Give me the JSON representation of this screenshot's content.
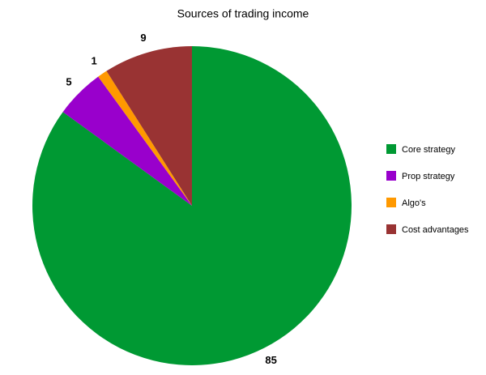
{
  "chart_data": {
    "type": "pie",
    "title": "Sources of trading income",
    "categories": [
      "Core strategy",
      "Prop strategy",
      "Algo's",
      "Cost advantages"
    ],
    "values": [
      85,
      5,
      1,
      9
    ],
    "colors": [
      "#009933",
      "#9900cc",
      "#ff9900",
      "#993333"
    ],
    "legend": "right"
  }
}
